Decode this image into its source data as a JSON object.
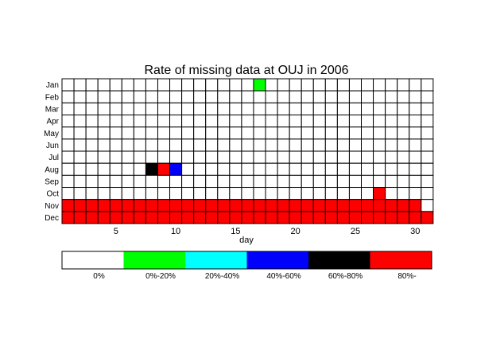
{
  "chart_data": {
    "type": "heatmap",
    "title": "Rate of missing data at OUJ in 2006",
    "xlabel": "day",
    "ylabel": "",
    "x_ticks": [
      5,
      10,
      15,
      20,
      25,
      30
    ],
    "days": 31,
    "months": [
      "Jan",
      "Feb",
      "Mar",
      "Apr",
      "May",
      "Jun",
      "Jul",
      "Aug",
      "Sep",
      "Oct",
      "Nov",
      "Dec"
    ],
    "legend": [
      {
        "label": "0%",
        "color": "#ffffff"
      },
      {
        "label": "0%-20%",
        "color": "#00ff00"
      },
      {
        "label": "20%-40%",
        "color": "#00ffff"
      },
      {
        "label": "40%-60%",
        "color": "#0000ff"
      },
      {
        "label": "60%-80%",
        "color": "#000000"
      },
      {
        "label": "80%-",
        "color": "#ff0000"
      }
    ],
    "cells": [
      {
        "month": "Jan",
        "day": 17,
        "level": 1
      },
      {
        "month": "Aug",
        "day": 8,
        "level": 4
      },
      {
        "month": "Aug",
        "day": 9,
        "level": 5
      },
      {
        "month": "Aug",
        "day": 10,
        "level": 3
      },
      {
        "month": "Oct",
        "day": 27,
        "level": 5
      },
      {
        "month": "Nov",
        "days_from": 1,
        "days_to": 30,
        "level": 5
      },
      {
        "month": "Dec",
        "days_from": 1,
        "days_to": 31,
        "level": 5
      }
    ]
  }
}
